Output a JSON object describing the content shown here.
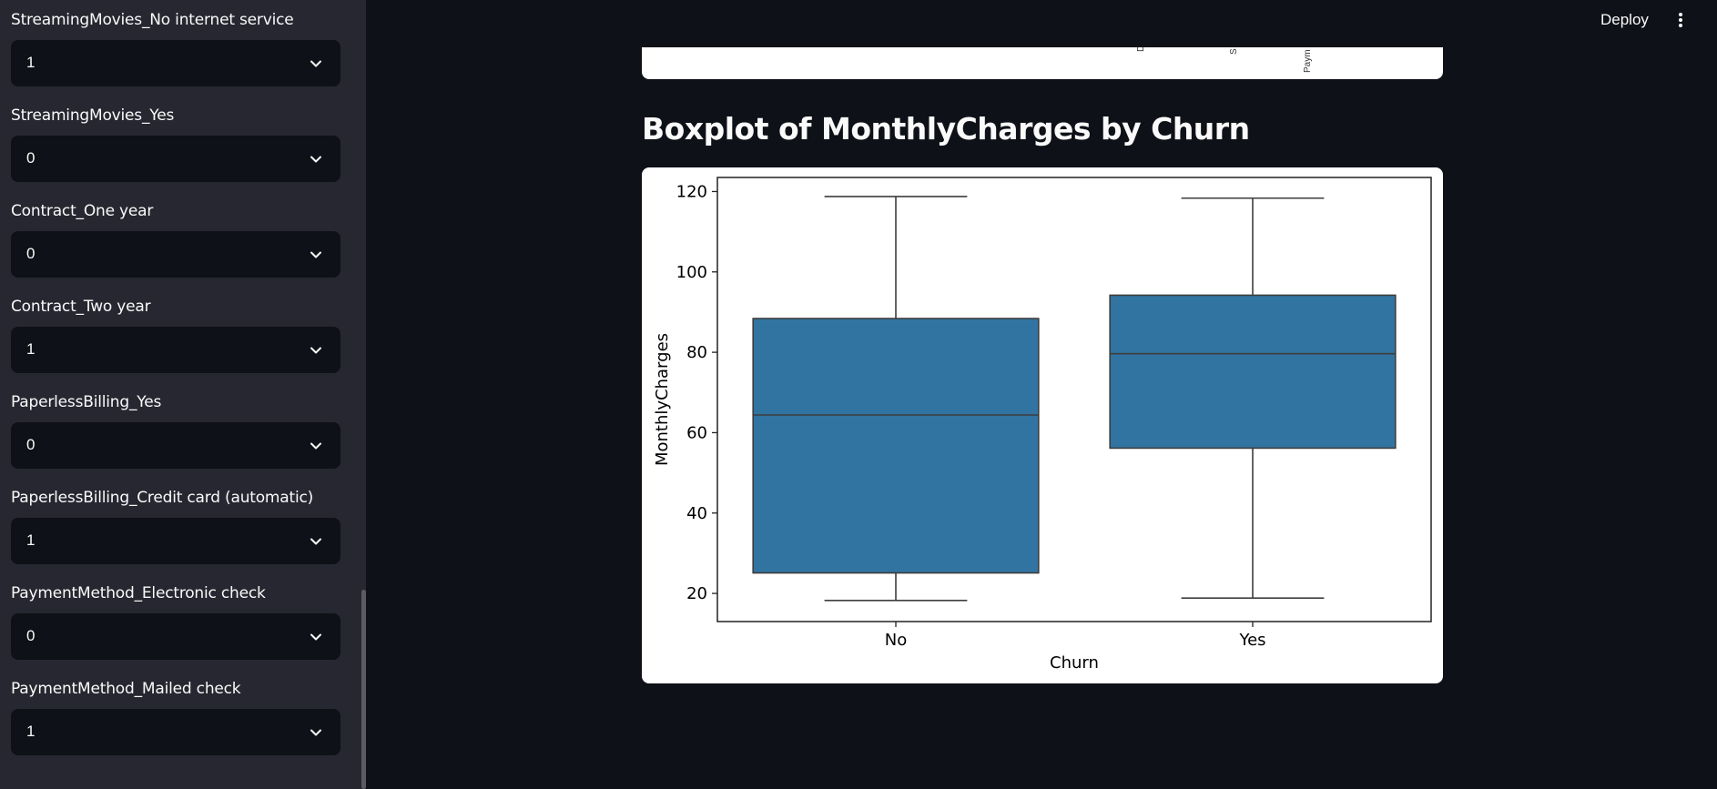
{
  "sidebar": {
    "fields": [
      {
        "label": "StreamingMovies_No internet service",
        "value": "1"
      },
      {
        "label": "StreamingMovies_Yes",
        "value": "0"
      },
      {
        "label": "Contract_One year",
        "value": "0"
      },
      {
        "label": "Contract_Two year",
        "value": "1"
      },
      {
        "label": "PaperlessBilling_Yes",
        "value": "0"
      },
      {
        "label": "PaperlessBilling_Credit card (automatic)",
        "value": "1"
      },
      {
        "label": "PaymentMethod_Electronic check",
        "value": "0"
      },
      {
        "label": "PaymentMethod_Mailed check",
        "value": "1"
      }
    ]
  },
  "header": {
    "deploy_label": "Deploy"
  },
  "previous_chart": {
    "tick_fragments": [
      "D",
      "S",
      "Paym"
    ]
  },
  "main": {
    "heading": "Boxplot of MonthlyCharges by Churn"
  },
  "colors": {
    "box_fill": "#3274a1",
    "line": "#3d3d3d",
    "background": "#0e1117",
    "sidebar": "#262730"
  },
  "chart_data": {
    "type": "boxplot",
    "xlabel": "Churn",
    "ylabel": "MonthlyCharges",
    "categories": [
      "No",
      "Yes"
    ],
    "ylim": [
      13,
      123.5
    ],
    "yticks": [
      20,
      40,
      60,
      80,
      100,
      120
    ],
    "boxes": [
      {
        "category": "No",
        "whisker_low": 18.25,
        "q1": 25.1,
        "median": 64.4,
        "q3": 88.4,
        "whisker_high": 118.75
      },
      {
        "category": "Yes",
        "whisker_low": 18.85,
        "q1": 56.15,
        "median": 79.65,
        "q3": 94.2,
        "whisker_high": 118.35
      }
    ]
  }
}
